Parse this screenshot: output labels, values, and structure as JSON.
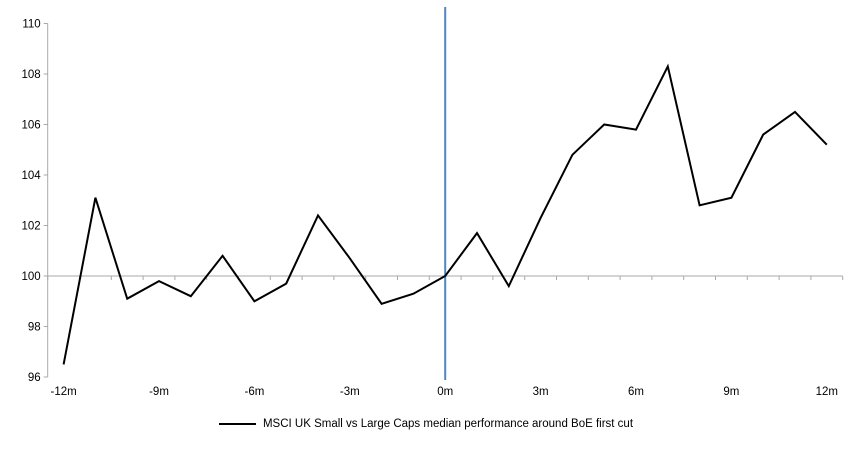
{
  "chart_data": {
    "type": "line",
    "title": "",
    "x": [
      -12,
      -11,
      -10,
      -9,
      -8,
      -7,
      -6,
      -5,
      -4,
      -3,
      -2,
      -1,
      0,
      1,
      2,
      3,
      4,
      5,
      6,
      7,
      8,
      9,
      10,
      11,
      12
    ],
    "x_tick_labels": [
      "-12m",
      "-9m",
      "-6m",
      "-3m",
      "0m",
      "3m",
      "6m",
      "9m",
      "12m"
    ],
    "x_tick_months": [
      -12,
      -9,
      -6,
      -3,
      0,
      3,
      6,
      9,
      12
    ],
    "series": [
      {
        "name": "MSCI UK Small vs Large Caps median performance around BoE first cut",
        "color": "#000000",
        "values": [
          96.5,
          103.1,
          99.1,
          99.8,
          99.2,
          100.8,
          99.0,
          99.7,
          102.4,
          100.7,
          98.9,
          99.3,
          100.0,
          101.7,
          99.6,
          102.3,
          104.8,
          106.0,
          105.8,
          108.3,
          102.8,
          103.1,
          105.6,
          106.5,
          105.2
        ]
      }
    ],
    "ylim": [
      96,
      110
    ],
    "y_ticks": [
      96,
      98,
      100,
      102,
      104,
      106,
      108,
      110
    ],
    "baseline": 100,
    "event_line": {
      "x": 0,
      "color": "#4F87C5"
    },
    "axis_color": "#A9A9A9",
    "grid": "baseline-only",
    "legend_position": "bottom"
  }
}
